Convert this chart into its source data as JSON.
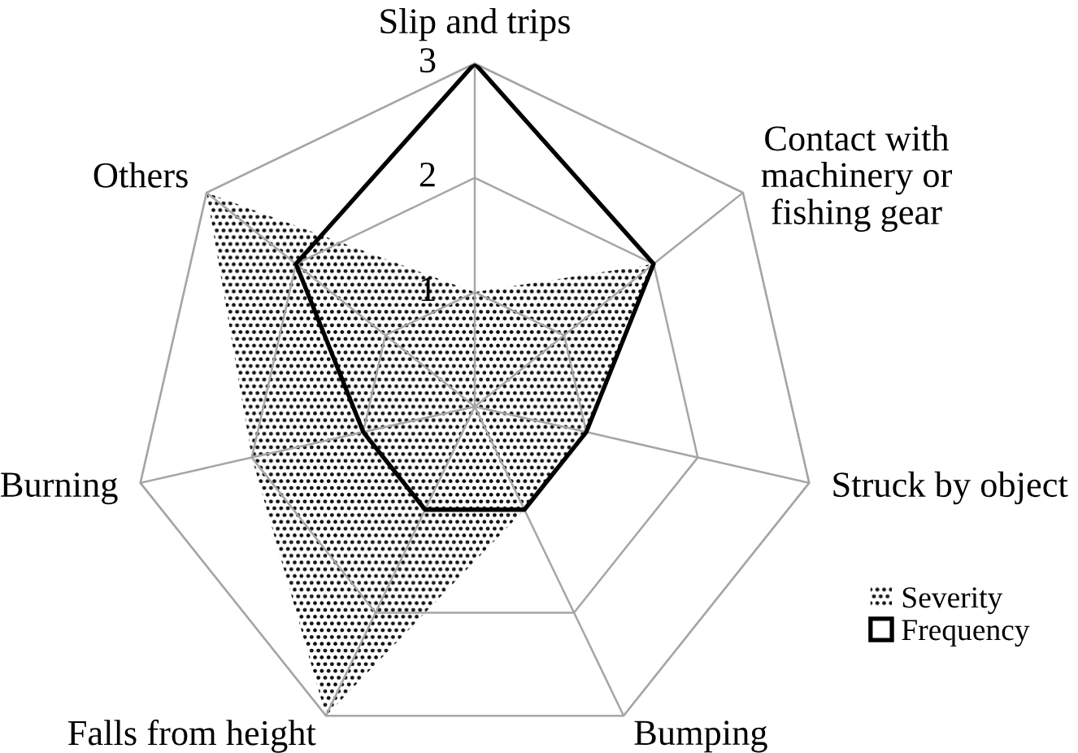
{
  "chart_data": {
    "type": "radar",
    "categories": [
      "Slip and trips",
      "Contact with\nmachinery or\nfishing gear",
      "Struck by object",
      "Bumping",
      "Falls from height",
      "Burning",
      "Others"
    ],
    "series": [
      {
        "name": "Severity",
        "color": "#000000",
        "values": [
          1,
          2,
          1,
          1,
          3,
          2,
          3
        ]
      },
      {
        "name": "Frequency",
        "color": "#000000",
        "values": [
          3,
          2,
          1,
          1,
          1,
          1,
          2
        ]
      }
    ],
    "ylim": [
      0,
      3
    ],
    "yticks": [
      1,
      2,
      3
    ],
    "grid": true,
    "legend": "bottom right"
  }
}
